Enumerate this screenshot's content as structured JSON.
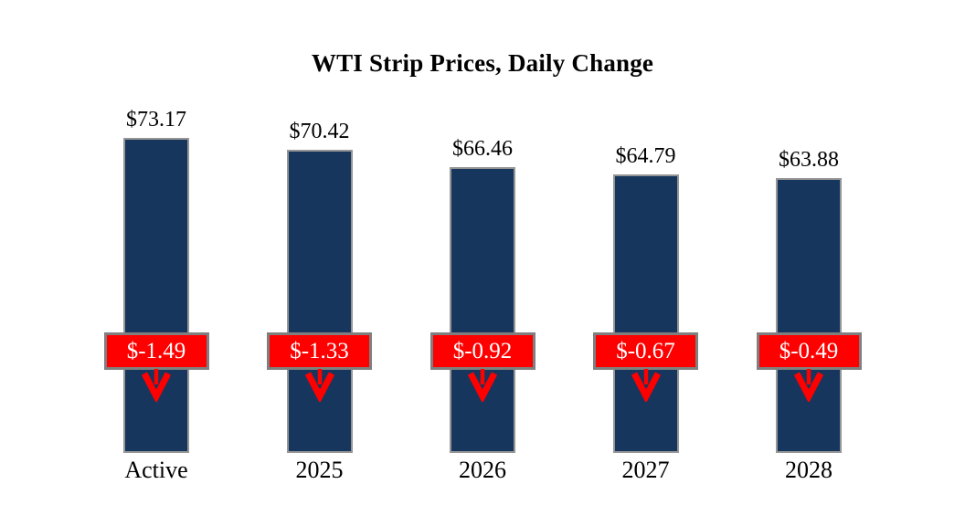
{
  "title": "WTI Strip Prices, Daily Change",
  "chart_data": {
    "type": "bar",
    "title": "WTI Strip Prices, Daily Change",
    "categories": [
      "Active",
      "2025",
      "2026",
      "2027",
      "2028"
    ],
    "series": [
      {
        "name": "Strip Price",
        "values": [
          73.17,
          70.42,
          66.46,
          64.79,
          63.88
        ]
      },
      {
        "name": "Daily Change",
        "values": [
          -1.49,
          -1.33,
          -0.92,
          -0.67,
          -0.49
        ]
      }
    ],
    "value_labels": [
      "$73.17",
      "$70.42",
      "$66.46",
      "$64.79",
      "$63.88"
    ],
    "change_labels": [
      "$-1.49",
      "$-1.33",
      "$-0.92",
      "$-0.67",
      "$-0.49"
    ],
    "xlabel": "",
    "ylabel": "",
    "ylim": [
      0,
      105
    ],
    "baseline": 0,
    "grid": false,
    "legend": false,
    "colors": {
      "bar_fill": "#17365D",
      "bar_border": "#969696",
      "change_fill": "#FF0000",
      "change_border": "#7F7F7F",
      "change_text": "#FFFFFF",
      "arrow": "#FF0000",
      "label_text": "#000000",
      "background": "#FFFFFF"
    }
  }
}
